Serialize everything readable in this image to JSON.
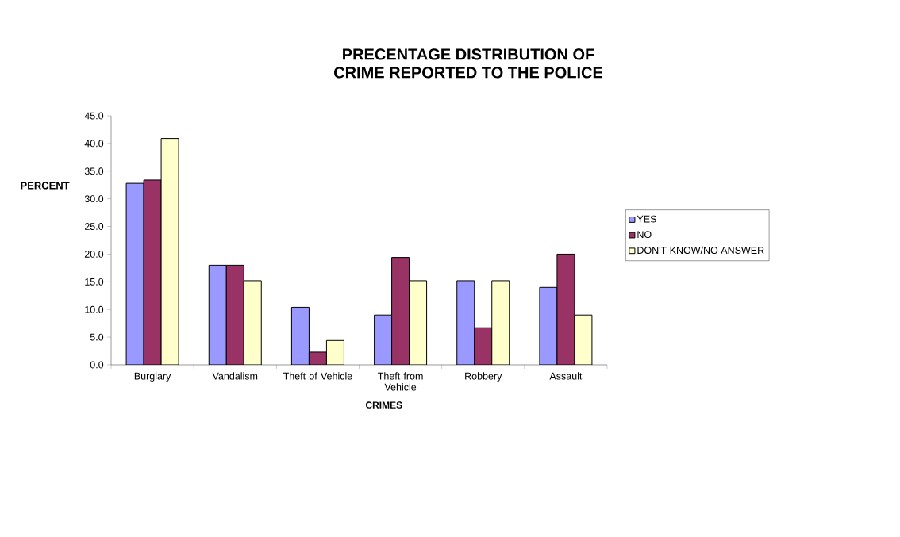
{
  "chart_data": {
    "type": "bar",
    "title": "PRECENTAGE DISTRIBUTION OF\nCRIME REPORTED TO THE POLICE",
    "xlabel": "CRIMES",
    "ylabel": "PERCENT",
    "categories": [
      "Burglary",
      "Vandalism",
      "Theft of Vehicle",
      "Theft from Vehicle",
      "Robbery",
      "Assault"
    ],
    "series": [
      {
        "name": "YES",
        "color": "#9999ff",
        "values": [
          32.8,
          18.0,
          10.4,
          9.0,
          15.2,
          14.0
        ]
      },
      {
        "name": "NO",
        "color": "#993366",
        "values": [
          33.4,
          18.0,
          2.3,
          19.4,
          6.7,
          20.0
        ]
      },
      {
        "name": "DON'T KNOW/NO ANSWER",
        "color": "#ffffcc",
        "values": [
          40.9,
          15.2,
          4.4,
          15.2,
          15.2,
          9.0
        ]
      }
    ],
    "ylim": [
      0,
      45
    ],
    "yticks": [
      {
        "value": 0,
        "label": "0.0"
      },
      {
        "value": 5,
        "label": "5.0"
      },
      {
        "value": 10,
        "label": "10.0"
      },
      {
        "value": 15,
        "label": "15.0"
      },
      {
        "value": 20,
        "label": "20.0"
      },
      {
        "value": 25,
        "label": "25.0"
      },
      {
        "value": 30,
        "label": "30.0"
      },
      {
        "value": 35,
        "label": "35.0"
      },
      {
        "value": 40,
        "label": "40.0"
      },
      {
        "value": 45,
        "label": "45.0"
      }
    ],
    "legend": "right",
    "grid": false
  }
}
